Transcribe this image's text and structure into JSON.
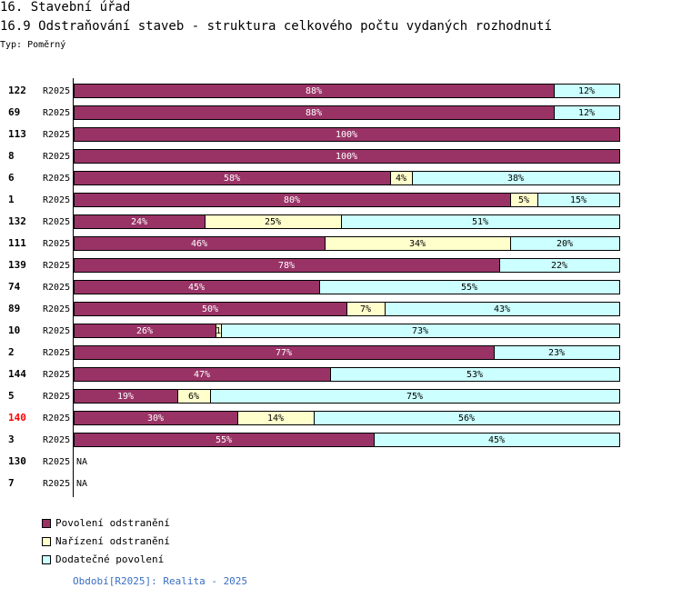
{
  "header": {
    "title": "16. Stavební úřad",
    "subtitle": "16.9 Odstraňování staveb - struktura celkového počtu vydaných rozhodnutí",
    "type_label": "Typ: Poměrný"
  },
  "legend": [
    {
      "label": "Povolení odstranění",
      "color": "#993366"
    },
    {
      "label": "Nařízení odstranění",
      "color": "#ffffcc"
    },
    {
      "label": "Dodatečné povolení",
      "color": "#ccffff"
    }
  ],
  "footer": {
    "period_text": "Období[R2025]: Realita - 2025"
  },
  "chart_data": {
    "type": "bar",
    "orientation": "horizontal",
    "stacked": "percent",
    "title": "16.9 Odstraňování staveb - struktura celkového počtu vydaných rozhodnutí",
    "period_label": "R2025",
    "highlight_color": "#ff0000",
    "categories": [
      "122",
      "69",
      "113",
      "8",
      "6",
      "1",
      "132",
      "111",
      "139",
      "74",
      "89",
      "10",
      "2",
      "144",
      "5",
      "140",
      "3",
      "130",
      "7"
    ],
    "highlighted": [
      "140"
    ],
    "series": [
      {
        "name": "Povolení odstranění",
        "color": "#993366",
        "text_color": "#ffffff",
        "values": [
          88,
          88,
          100,
          100,
          58,
          80,
          24,
          46,
          78,
          45,
          50,
          26,
          77,
          47,
          19,
          30,
          55,
          null,
          null
        ]
      },
      {
        "name": "Nařízení odstranění",
        "color": "#ffffcc",
        "text_color": "#000000",
        "values": [
          0,
          0,
          0,
          0,
          4,
          5,
          25,
          34,
          0,
          0,
          7,
          1,
          0,
          0,
          6,
          14,
          0,
          null,
          null
        ]
      },
      {
        "name": "Dodatečné povolení",
        "color": "#ccffff",
        "text_color": "#000000",
        "values": [
          12,
          12,
          0,
          0,
          38,
          15,
          51,
          20,
          22,
          55,
          43,
          73,
          23,
          53,
          75,
          56,
          45,
          null,
          null
        ]
      }
    ],
    "labels": [
      [
        "88%",
        "",
        "12%"
      ],
      [
        "88%",
        "",
        "12%"
      ],
      [
        "100%",
        "",
        ""
      ],
      [
        "100%",
        "",
        ""
      ],
      [
        "58%",
        "4%",
        "38%"
      ],
      [
        "80%",
        "5%",
        "15%"
      ],
      [
        "24%",
        "25%",
        "51%"
      ],
      [
        "46%",
        "34%",
        "20%"
      ],
      [
        "78%",
        "",
        "22%"
      ],
      [
        "45%",
        "",
        "55%"
      ],
      [
        "50%",
        "7%",
        "43%"
      ],
      [
        "26%",
        "1",
        "73%"
      ],
      [
        "77%",
        "",
        "23%"
      ],
      [
        "47%",
        "",
        "53%"
      ],
      [
        "19%",
        "6%",
        "75%"
      ],
      [
        "30%",
        "14%",
        "56%"
      ],
      [
        "55%",
        "",
        "45%"
      ],
      [
        "NA",
        "",
        ""
      ],
      [
        "NA",
        "",
        ""
      ]
    ],
    "xlim": [
      0,
      100
    ]
  }
}
